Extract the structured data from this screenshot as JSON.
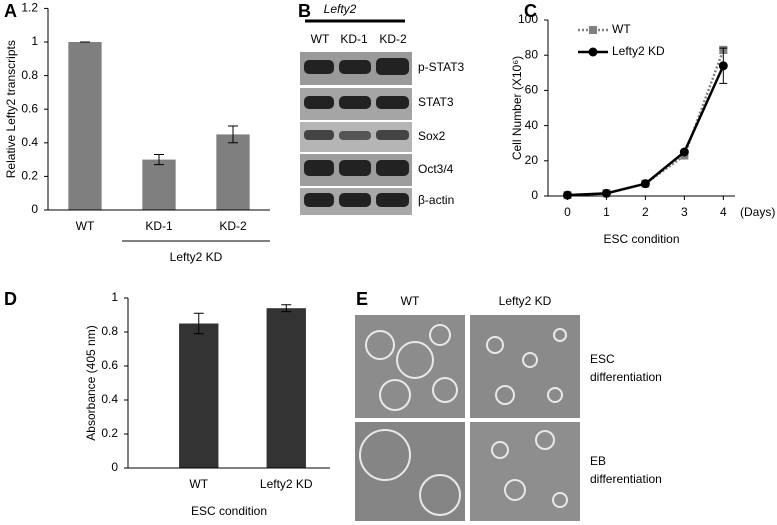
{
  "panel_labels": [
    "A",
    "B",
    "C",
    "D",
    "E"
  ],
  "chart_data": [
    {
      "type": "bar",
      "ylabel": "Relative Lefty2 transcripts",
      "categories": [
        "WT",
        "KD-1",
        "KD-2"
      ],
      "values": [
        1,
        0.3,
        0.45
      ],
      "errors": [
        0,
        0.03,
        0.05
      ],
      "color": "#7f7f7f",
      "ylim": [
        0,
        1.2
      ],
      "yticks": [
        0,
        0.2,
        0.4,
        0.6,
        0.8,
        1,
        1.2
      ],
      "group_label": "Lefty2 KD"
    },
    {
      "type": "line",
      "xlabel": "ESC condition",
      "ylabel": "Cell Number (X10⁶)",
      "x_unit": "(Days)",
      "x": [
        0,
        1,
        2,
        3,
        4
      ],
      "xlim": [
        -0.5,
        4.3
      ],
      "xticks": [
        0,
        1,
        2,
        3,
        4
      ],
      "ylim": [
        0,
        100
      ],
      "yticks": [
        0,
        20,
        40,
        60,
        80,
        100
      ],
      "series": [
        {
          "name": "WT",
          "color": "#808080",
          "line_style": "dotted",
          "marker": "square",
          "values": [
            0.5,
            1.5,
            7,
            23,
            83
          ],
          "errors": [
            0,
            0,
            0,
            0,
            2
          ]
        },
        {
          "name": "Lefty2 KD",
          "color": "#000000",
          "line_style": "solid",
          "marker": "circle",
          "values": [
            0.5,
            1.5,
            7,
            25,
            74
          ],
          "errors": [
            0,
            0,
            0,
            0,
            10
          ]
        }
      ]
    },
    {
      "type": "bar",
      "xlabel": "ESC condition",
      "ylabel": "Absorbance (405 nm)",
      "categories": [
        "WT",
        "Lefty2  KD"
      ],
      "values": [
        0.85,
        0.94
      ],
      "errors": [
        0.06,
        0.02
      ],
      "color": "#333333",
      "ylim": [
        0,
        1
      ],
      "yticks": [
        0,
        0.2,
        0.4,
        0.6,
        0.8,
        1
      ]
    }
  ],
  "blot": {
    "header": "Lefty2",
    "columns": [
      "WT",
      "KD-1",
      "KD-2"
    ],
    "rows": [
      "p-STAT3",
      "STAT3",
      "Sox2",
      "Oct3/4",
      "β-actin"
    ]
  },
  "micrographs": {
    "columns": [
      "WT",
      "Lefty2 KD"
    ],
    "rows": [
      {
        "lines": [
          "ESC",
          "differentiation"
        ]
      },
      {
        "lines": [
          "EB",
          "differentiation"
        ]
      }
    ]
  }
}
